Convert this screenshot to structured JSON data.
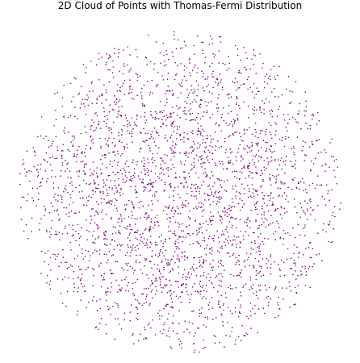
{
  "chart_data": {
    "type": "scatter",
    "title": "2D Cloud of Points with Thomas-Fermi Distribution",
    "xlabel": "",
    "ylabel": "",
    "grid": false,
    "axes_visible": false,
    "distribution": "Thomas-Fermi",
    "xlim": [
      -1.05,
      1.05
    ],
    "ylim": [
      -1.05,
      1.05
    ],
    "point_color": "#800080",
    "series": [
      {
        "point_count": 3000,
        "support_radius": 1.0,
        "density_profile": "1 - r^2"
      }
    ]
  }
}
